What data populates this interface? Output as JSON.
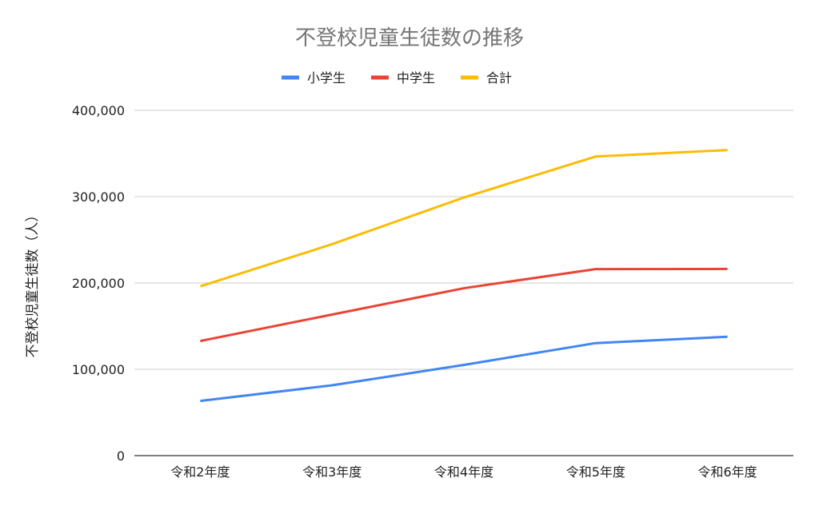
{
  "chart_data": {
    "type": "line",
    "title": "不登校児童生徒数の推移",
    "xlabel": "",
    "ylabel": "不登校児童生徒数（人）",
    "categories": [
      "令和2年度",
      "令和3年度",
      "令和4年度",
      "令和5年度",
      "令和6年度"
    ],
    "ylim": [
      0,
      400000
    ],
    "yticks": [
      0,
      100000,
      200000,
      300000,
      400000
    ],
    "ytick_labels": [
      "0",
      "100,000",
      "200,000",
      "300,000",
      "400,000"
    ],
    "grid": true,
    "legend_position": "top",
    "series": [
      {
        "name": "小学生",
        "color": "#4285f4",
        "values": [
          63350,
          81498,
          105112,
          130370,
          137704
        ]
      },
      {
        "name": "中学生",
        "color": "#ea4335",
        "values": [
          132777,
          163442,
          193936,
          216112,
          216266
        ]
      },
      {
        "name": "合計",
        "color": "#fbbc04",
        "values": [
          196127,
          244940,
          299048,
          346482,
          353970
        ]
      }
    ]
  }
}
